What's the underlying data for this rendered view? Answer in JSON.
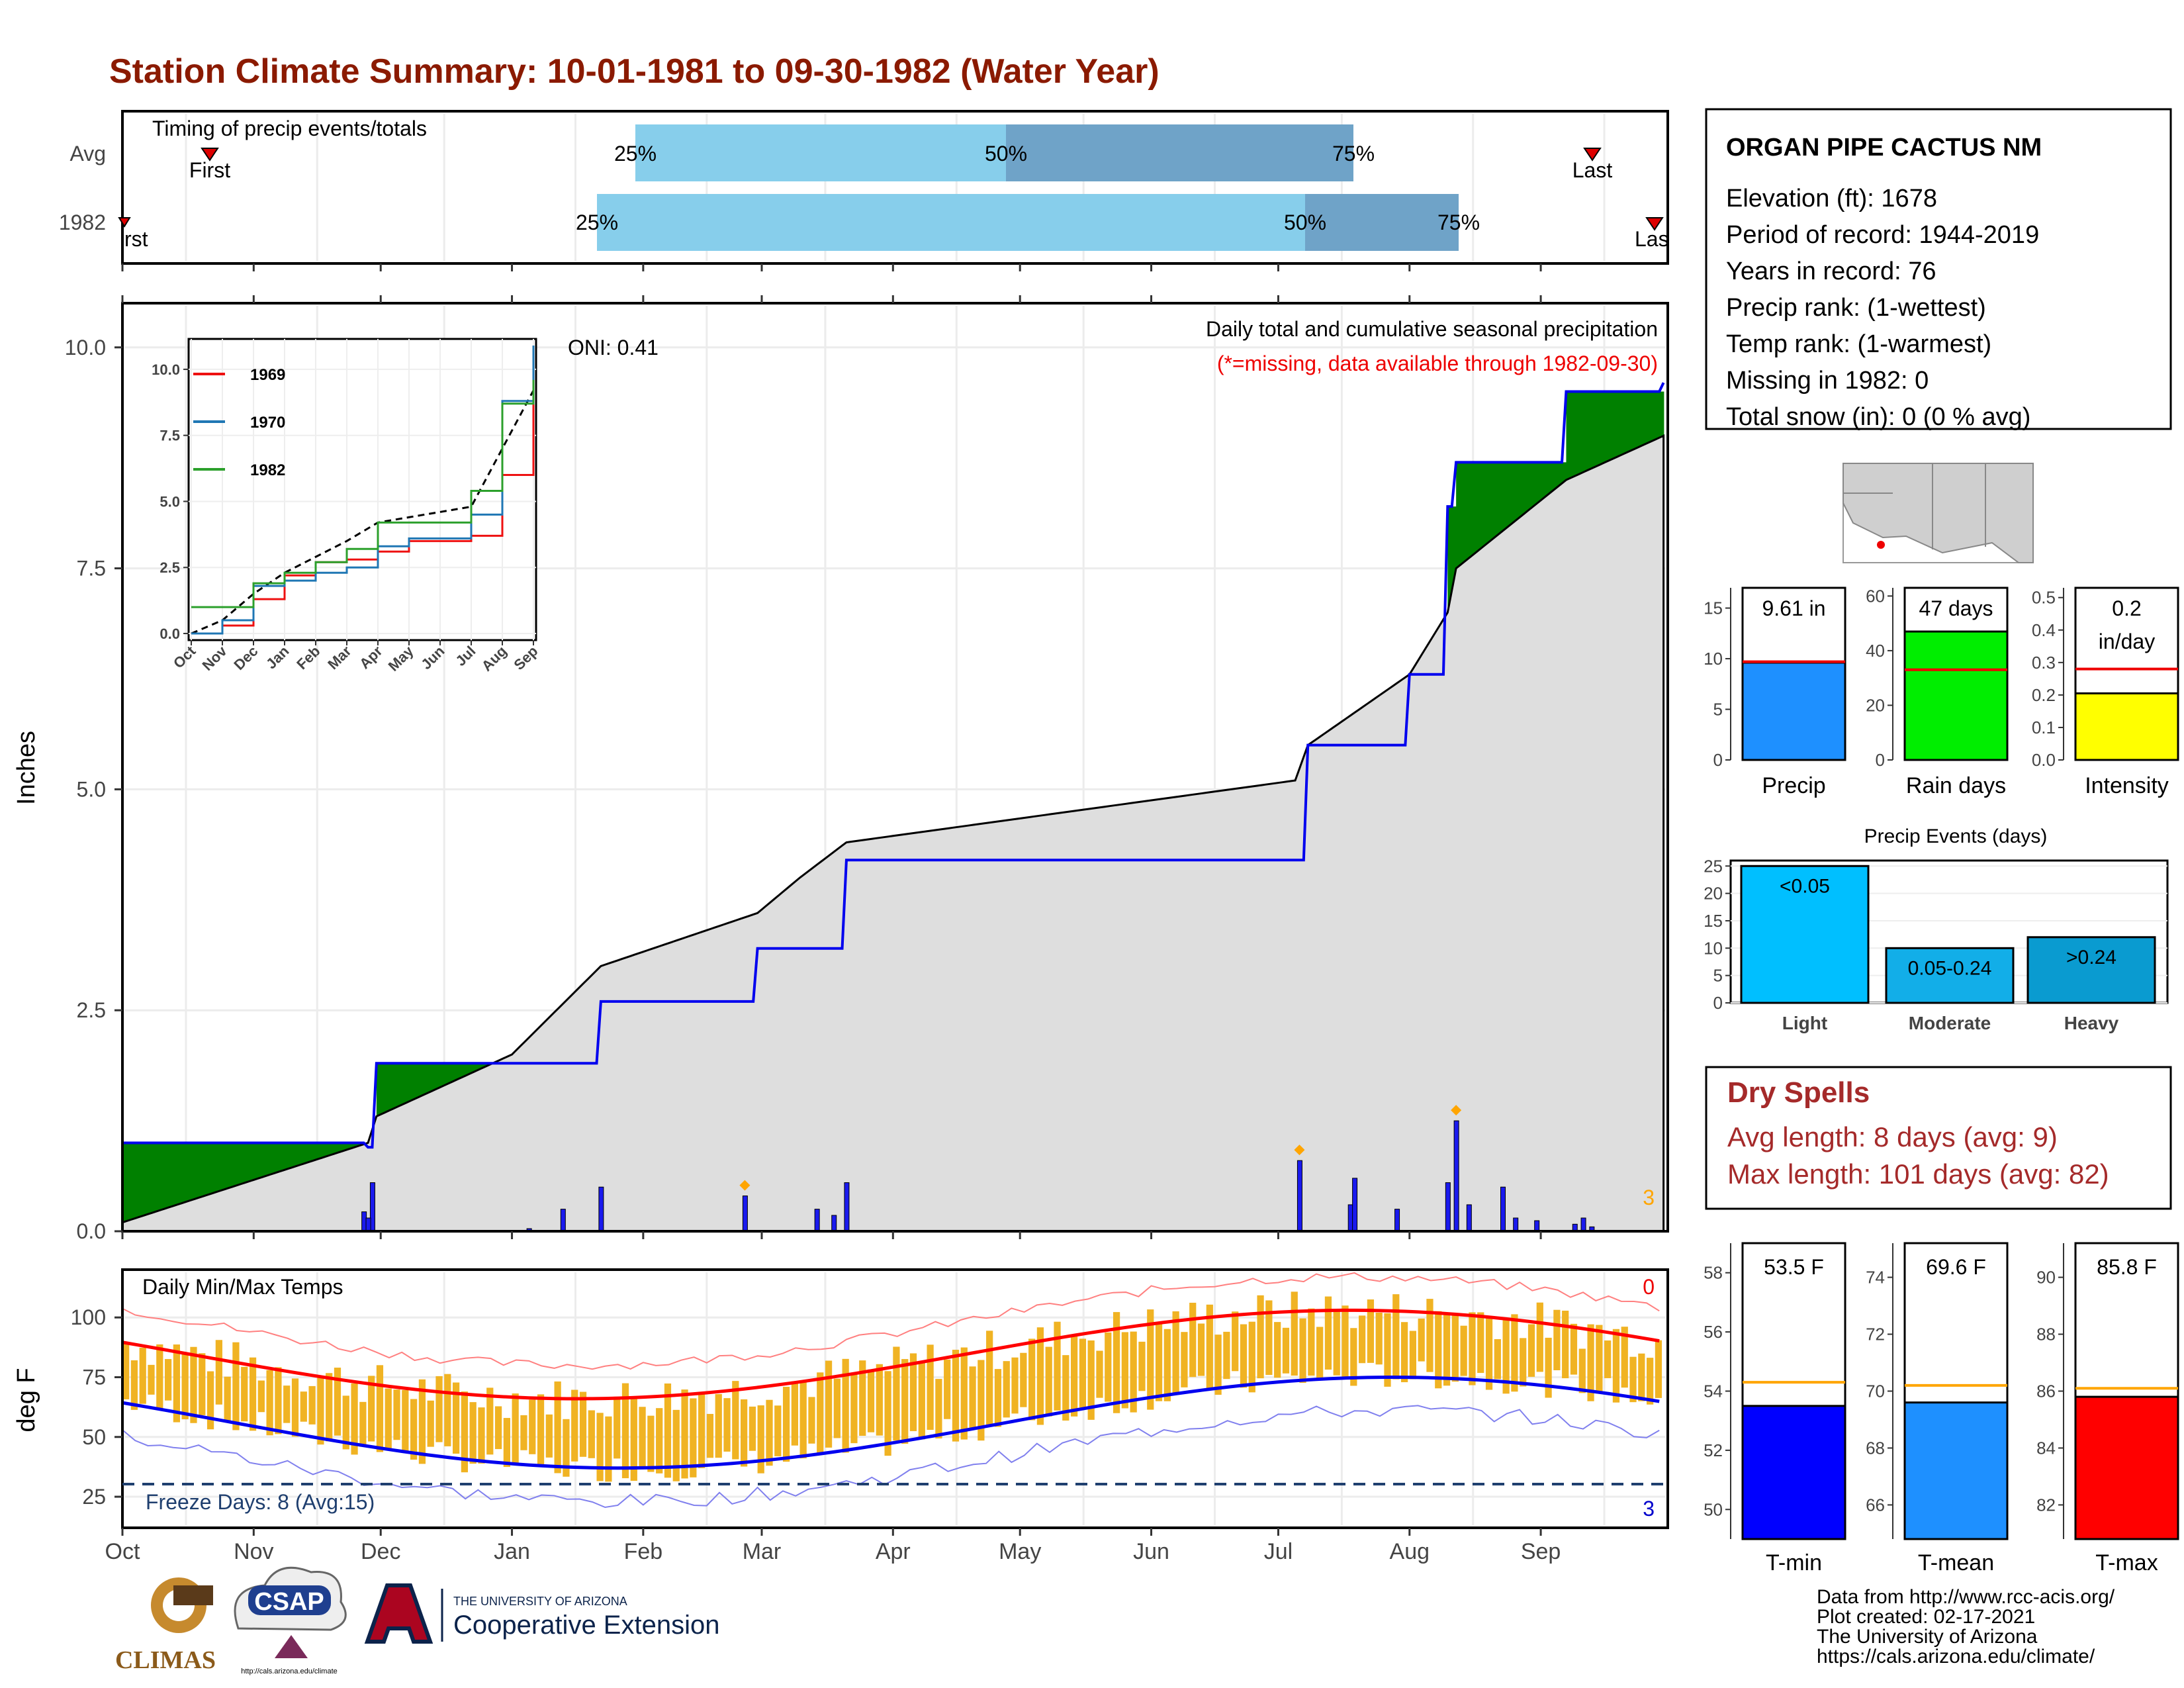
{
  "title": "Station Climate Summary: 10-01-1981 to 09-30-1982 (Water Year)",
  "colors": {
    "title": "#8B1A00",
    "wet": "#008000",
    "dry": "#8B5A00",
    "cum_avg": "#dedede",
    "cum_year": "#0000ee",
    "bar_light": "#87CEEB",
    "bar_dark": "#6FA3C8",
    "temp_band": "#F0B323",
    "tmax_avg": "#ff0000",
    "tmin_avg": "#0000ee",
    "dry_text": "#A52A2A"
  },
  "timing": {
    "title": "Timing of precip events/totals",
    "row_labels": [
      "Avg",
      "1982"
    ],
    "avg": {
      "first_label": "First",
      "last_label": "Last",
      "q25": "25%",
      "q50": "50%",
      "q75": "75%"
    },
    "yr": {
      "first_label": "rst",
      "last_label": "Las",
      "q25": "25%",
      "q50": "50%",
      "q75": "75%"
    }
  },
  "main": {
    "ylabel": "Inches",
    "yticks": [
      "0.0",
      "2.5",
      "5.0",
      "7.5",
      "10.0"
    ],
    "oni": "ONI: 0.41",
    "subtitle": "Daily total and cumulative seasonal precipitation",
    "missing_note": "(*=missing, data available through 1982-09-30)",
    "count_label": "3"
  },
  "inset": {
    "yticks": [
      "0.0",
      "2.5",
      "5.0",
      "7.5",
      "10.0"
    ],
    "xticks": [
      "Oct",
      "Nov",
      "Dec",
      "Jan",
      "Feb",
      "Mar",
      "Apr",
      "May",
      "Jun",
      "Jul",
      "Aug",
      "Sep"
    ],
    "legend": [
      "1969",
      "1970",
      "1982"
    ]
  },
  "temp": {
    "ylabel": "deg F",
    "title": "Daily Min/Max Temps",
    "yticks": [
      "25",
      "50",
      "75",
      "100"
    ],
    "freeze": "Freeze Days: 8 (Avg:15)",
    "top_count": "0",
    "bottom_count": "3"
  },
  "months": [
    "Oct",
    "Nov",
    "Dec",
    "Jan",
    "Feb",
    "Mar",
    "Apr",
    "May",
    "Jun",
    "Jul",
    "Aug",
    "Sep"
  ],
  "station": {
    "name": "ORGAN PIPE CACTUS NM",
    "lines": [
      "Elevation (ft): 1678",
      "Period of record: 1944-2019",
      "Years in record: 76",
      "Precip rank:  (1-wettest)",
      "Temp rank:  (1-warmest)",
      "Missing in 1982: 0",
      "Total snow (in): 0 (0 % avg)"
    ]
  },
  "mini": {
    "precip": {
      "label": "Precip",
      "value_text": "9.61 in",
      "value": 9.61,
      "avg": 9.7,
      "yticks": [
        "0",
        "5",
        "10",
        "15"
      ]
    },
    "rain": {
      "label": "Rain days",
      "value_text": "47 days",
      "value": 47,
      "avg": 33,
      "yticks": [
        "0",
        "20",
        "40",
        "60"
      ]
    },
    "intensity": {
      "label": "Intensity",
      "value_text": [
        "0.2",
        "in/day"
      ],
      "value": 0.205,
      "avg": 0.28,
      "yticks": [
        "0.0",
        "0.1",
        "0.2",
        "0.3",
        "0.4",
        "0.5"
      ]
    }
  },
  "events": {
    "title": "Precip Events (days)",
    "yticks": [
      "0",
      "5",
      "10",
      "15",
      "20",
      "25"
    ],
    "categories": [
      "Light",
      "Moderate",
      "Heavy"
    ],
    "bar_labels": [
      "<0.05",
      "0.05-0.24",
      ">0.24"
    ],
    "values": [
      25,
      10,
      12
    ]
  },
  "dry": {
    "title": "Dry Spells",
    "avg": "Avg length: 8 days (avg: 9)",
    "max": "Max length: 101 days (avg: 82)"
  },
  "tbars": {
    "tmin": {
      "label": "T-min",
      "value_text": "53.5 F",
      "value": 53.5,
      "avg": 54.3,
      "yticks": [
        "50",
        "52",
        "54",
        "56",
        "58"
      ]
    },
    "tmean": {
      "label": "T-mean",
      "value_text": "69.6 F",
      "value": 69.6,
      "avg": 70.2,
      "yticks": [
        "66",
        "68",
        "70",
        "72",
        "74"
      ]
    },
    "tmax": {
      "label": "T-max",
      "value_text": "85.8 F",
      "value": 85.8,
      "avg": 86.1,
      "yticks": [
        "82",
        "84",
        "86",
        "88",
        "90"
      ]
    }
  },
  "credits": [
    "Data from http://www.rcc-acis.org/",
    "Plot created: 02-17-2021",
    "The University of Arizona",
    "https://cals.arizona.edu/climate/"
  ],
  "logos": {
    "climas": "CLIMAS",
    "csap": "CSAP",
    "csap_url": "http://cals.arizona.edu/climate",
    "ua_top": "THE UNIVERSITY OF ARIZONA",
    "ua_main": "Cooperative Extension"
  },
  "chart_data": [
    {
      "type": "line",
      "title": "Daily total and cumulative seasonal precipitation",
      "ylabel": "Inches",
      "ylim": [
        0,
        10.5
      ],
      "x": [
        "Oct 1",
        "Nov 28",
        "Nov 30",
        "Jan 1",
        "Jan 22",
        "Feb 28",
        "Mar 10",
        "Mar 21",
        "Jul 5",
        "Jul 8",
        "Aug 1",
        "Aug 10",
        "Aug 12",
        "Sep 7",
        "Sep 30"
      ],
      "series": [
        {
          "name": "1982 cumulative",
          "values": [
            1.0,
            0.95,
            1.9,
            1.9,
            2.6,
            3.2,
            3.2,
            4.2,
            4.2,
            5.5,
            6.3,
            8.2,
            8.7,
            9.5,
            9.6
          ]
        },
        {
          "name": "Average cumulative",
          "values": [
            0.1,
            1.0,
            1.3,
            2.0,
            3.0,
            3.6,
            4.0,
            4.4,
            5.1,
            5.5,
            6.3,
            7.0,
            7.5,
            8.5,
            9.0
          ]
        }
      ],
      "daily_peaks": [
        {
          "date": "Nov 30",
          "value": 0.55
        },
        {
          "date": "Feb 28",
          "value": 0.4
        },
        {
          "date": "Mar 21",
          "value": 0.55
        },
        {
          "date": "Jul 6",
          "value": 0.8
        },
        {
          "date": "Aug 12",
          "value": 1.25
        },
        {
          "date": "Aug 23",
          "value": 0.5
        }
      ]
    },
    {
      "type": "line",
      "title": "",
      "ylim": [
        0,
        10.5
      ],
      "categories": [
        "Oct",
        "Nov",
        "Dec",
        "Jan",
        "Feb",
        "Mar",
        "Apr",
        "May",
        "Jun",
        "Jul",
        "Aug",
        "Sep"
      ],
      "series": [
        {
          "name": "1969",
          "values": [
            0.0,
            0.3,
            1.3,
            2.2,
            2.7,
            2.8,
            3.1,
            3.5,
            3.5,
            3.7,
            6.0,
            9.7
          ]
        },
        {
          "name": "1970",
          "values": [
            0.0,
            0.5,
            1.8,
            2.0,
            2.3,
            2.5,
            3.3,
            3.6,
            3.6,
            4.5,
            8.8,
            10.9
          ]
        },
        {
          "name": "1982",
          "values": [
            1.0,
            1.0,
            1.9,
            2.3,
            2.7,
            3.2,
            4.2,
            4.2,
            4.2,
            5.4,
            8.7,
            9.6
          ]
        }
      ]
    },
    {
      "type": "bar",
      "title": "Precip Events (days)",
      "categories": [
        "Light",
        "Moderate",
        "Heavy"
      ],
      "values": [
        25,
        10,
        12
      ],
      "ylim": [
        0,
        25
      ]
    },
    {
      "type": "bar",
      "categories": [
        "Precip",
        "Rain days",
        "Intensity"
      ],
      "values": [
        9.61,
        47,
        0.2
      ]
    },
    {
      "type": "bar",
      "categories": [
        "T-min",
        "T-mean",
        "T-max"
      ],
      "values": [
        53.5,
        69.6,
        85.8
      ]
    }
  ]
}
